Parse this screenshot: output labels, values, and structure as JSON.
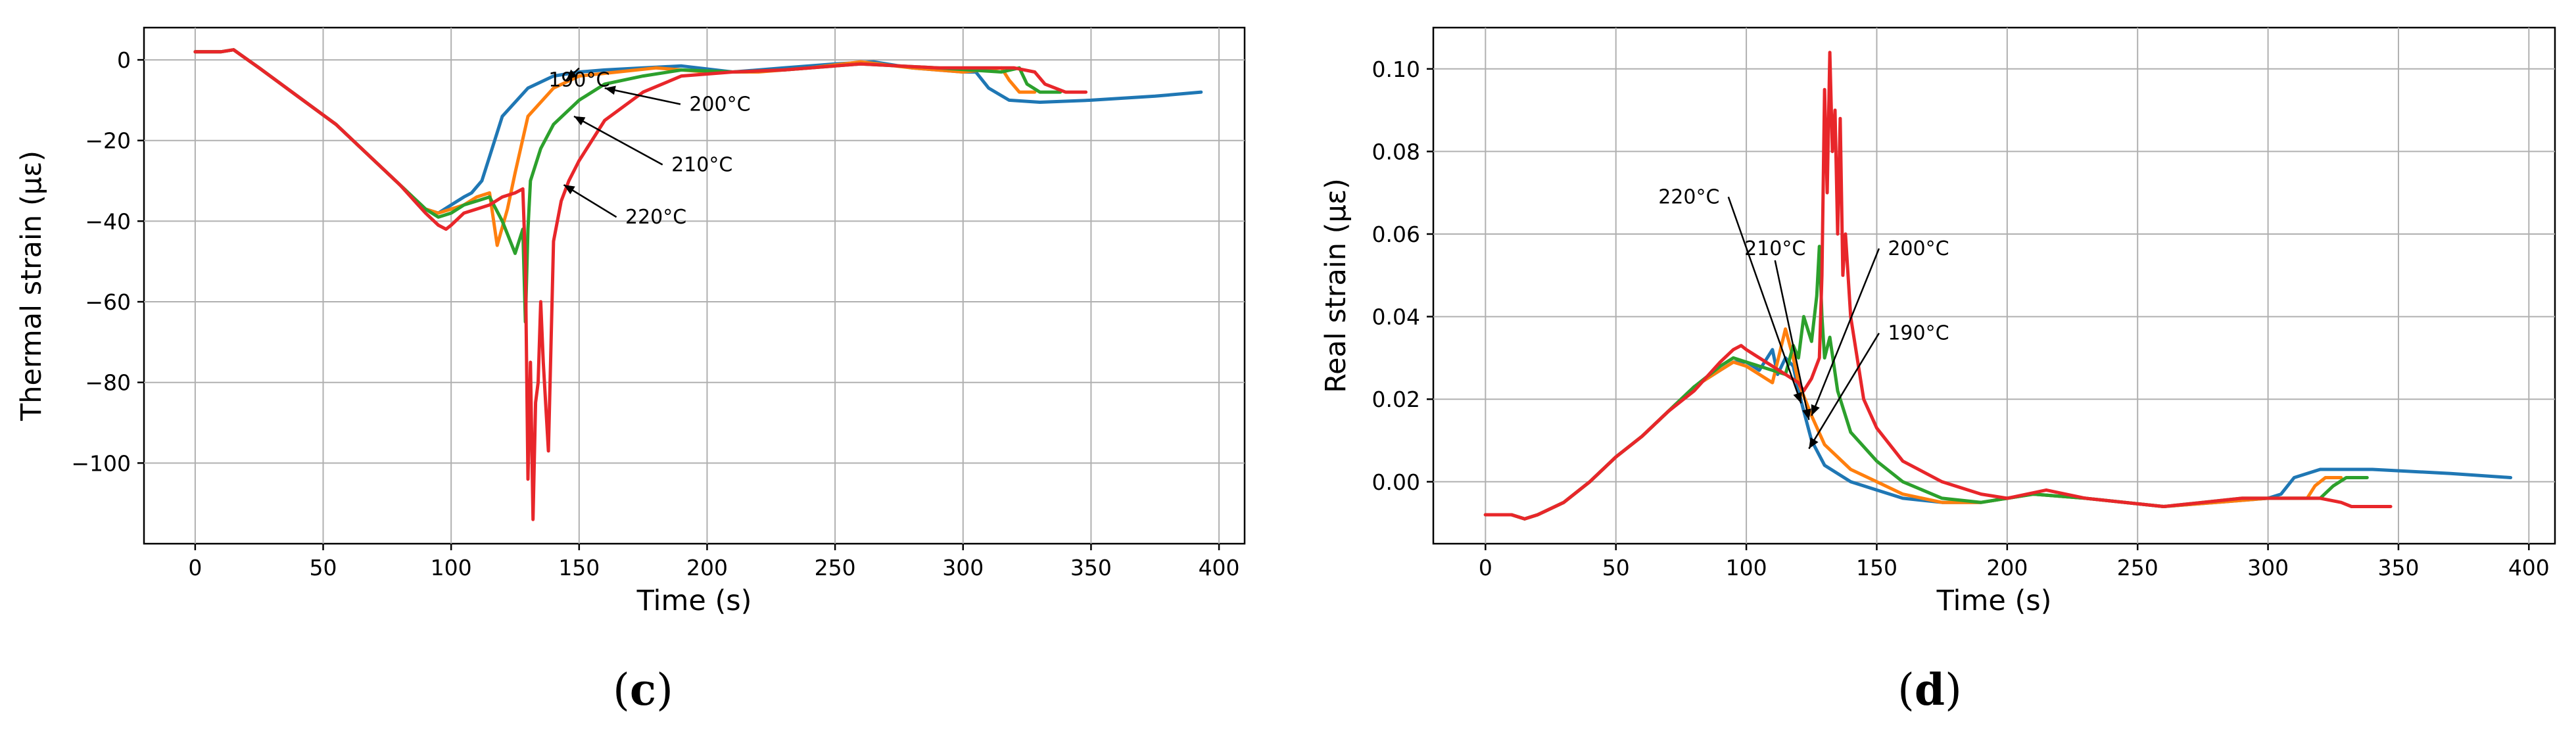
{
  "chart_data": [
    {
      "type": "line",
      "panel": "(c)",
      "caption_letter": "c",
      "xlabel": "Time (s)",
      "ylabel": "Thermal strain (µε)",
      "xlim": [
        -20,
        410
      ],
      "ylim": [
        -120,
        8
      ],
      "xticks": [
        0,
        50,
        100,
        150,
        200,
        250,
        300,
        350,
        400
      ],
      "yticks": [
        0,
        -20,
        -40,
        -60,
        -80,
        -100
      ],
      "ytick_labels": [
        "0",
        "−20",
        "−40",
        "−60",
        "−80",
        "−100"
      ],
      "grid": true,
      "annotations": [
        {
          "text": "190°C",
          "text_x": 150,
          "text_y": -5,
          "arrow_to": [
            145,
            -5
          ]
        },
        {
          "text": "200°C",
          "text_x": 205,
          "text_y": -11,
          "arrow_to": [
            160,
            -7
          ]
        },
        {
          "text": "210°C",
          "text_x": 198,
          "text_y": -26,
          "arrow_to": [
            148,
            -14
          ]
        },
        {
          "text": "220°C",
          "text_x": 180,
          "text_y": -39,
          "arrow_to": [
            144,
            -31
          ]
        }
      ],
      "series": [
        {
          "name": "190°C",
          "color": "#1f77b4",
          "x": [
            0,
            10,
            15,
            25,
            40,
            55,
            70,
            80,
            90,
            95,
            100,
            105,
            108,
            112,
            115,
            120,
            130,
            140,
            150,
            160,
            175,
            190,
            210,
            230,
            250,
            265,
            280,
            300,
            305,
            310,
            318,
            330,
            350,
            375,
            393
          ],
          "y": [
            2,
            2,
            2.5,
            -2,
            -9,
            -16,
            -25,
            -31,
            -37,
            -38,
            -36,
            -34,
            -33,
            -30,
            -24,
            -14,
            -7,
            -4,
            -3,
            -2.5,
            -2,
            -1.5,
            -3,
            -2,
            -1,
            -0.5,
            -2,
            -3,
            -3,
            -7,
            -10,
            -10.5,
            -10,
            -9,
            -8
          ]
        },
        {
          "name": "200°C",
          "color": "#ff7f0e",
          "x": [
            0,
            10,
            15,
            25,
            40,
            55,
            70,
            80,
            90,
            95,
            100,
            105,
            110,
            115,
            118,
            122,
            125,
            130,
            140,
            150,
            165,
            180,
            200,
            220,
            240,
            260,
            280,
            300,
            315,
            318,
            322,
            328
          ],
          "y": [
            2,
            2,
            2.5,
            -2,
            -9,
            -16,
            -25,
            -31,
            -37,
            -38,
            -37,
            -36,
            -34,
            -33,
            -46,
            -37,
            -28,
            -14,
            -7,
            -4,
            -3,
            -2,
            -3,
            -3,
            -2,
            -0.5,
            -2,
            -3,
            -2,
            -5,
            -8,
            -8
          ]
        },
        {
          "name": "210°C",
          "color": "#2ca02c",
          "x": [
            0,
            10,
            15,
            25,
            40,
            55,
            70,
            80,
            90,
            95,
            100,
            105,
            110,
            115,
            120,
            125,
            128,
            129,
            130,
            131,
            135,
            140,
            150,
            160,
            175,
            190,
            210,
            230,
            260,
            290,
            315,
            322,
            325,
            330,
            338
          ],
          "y": [
            2,
            2,
            2.5,
            -2,
            -9,
            -16,
            -25,
            -31,
            -37,
            -39,
            -38,
            -36,
            -35,
            -34,
            -40,
            -48,
            -42,
            -65,
            -42,
            -30,
            -22,
            -16,
            -10,
            -6,
            -4,
            -2.5,
            -3,
            -2.5,
            -1,
            -2,
            -3,
            -2,
            -6,
            -8,
            -8
          ]
        },
        {
          "name": "220°C",
          "color": "#e8262a",
          "x": [
            0,
            10,
            15,
            25,
            40,
            55,
            70,
            80,
            90,
            95,
            98,
            100,
            105,
            110,
            115,
            120,
            125,
            128,
            129,
            130,
            131,
            132,
            133,
            134,
            135,
            136,
            138,
            140,
            143,
            146,
            150,
            160,
            175,
            190,
            210,
            230,
            260,
            290,
            320,
            328,
            332,
            340,
            348
          ],
          "y": [
            2,
            2,
            2.5,
            -2,
            -9,
            -16,
            -25,
            -31,
            -38,
            -41,
            -42,
            -41,
            -38,
            -37,
            -36,
            -34,
            -33,
            -32,
            -50,
            -104,
            -75,
            -114,
            -85,
            -80,
            -60,
            -75,
            -97,
            -45,
            -35,
            -30,
            -25,
            -15,
            -8,
            -4,
            -3,
            -2.5,
            -1,
            -2,
            -2,
            -3,
            -6,
            -8,
            -8
          ]
        }
      ]
    },
    {
      "type": "line",
      "panel": "(d)",
      "caption_letter": "d",
      "xlabel": "Time (s)",
      "ylabel": "Real strain (µε)",
      "xlim": [
        -20,
        410
      ],
      "ylim": [
        -0.015,
        0.11
      ],
      "xticks": [
        0,
        50,
        100,
        150,
        200,
        250,
        300,
        350,
        400
      ],
      "yticks": [
        0.0,
        0.02,
        0.04,
        0.06,
        0.08,
        0.1
      ],
      "ytick_labels": [
        "0.00",
        "0.02",
        "0.04",
        "0.06",
        "0.08",
        "0.10"
      ],
      "grid": true,
      "annotations": [
        {
          "text": "220°C",
          "text_x": 78,
          "text_y": 0.069,
          "arrow_to": [
            121,
            0.019
          ]
        },
        {
          "text": "210°C",
          "text_x": 111,
          "text_y": 0.0565,
          "arrow_to": [
            124,
            0.015
          ]
        },
        {
          "text": "200°C",
          "text_x": 166,
          "text_y": 0.0565,
          "arrow_to": [
            125,
            0.016
          ]
        },
        {
          "text": "190°C",
          "text_x": 166,
          "text_y": 0.036,
          "arrow_to": [
            124,
            0.008
          ]
        }
      ],
      "series": [
        {
          "name": "190°C",
          "color": "#1f77b4",
          "x": [
            0,
            10,
            15,
            20,
            30,
            40,
            50,
            60,
            70,
            80,
            90,
            95,
            100,
            105,
            108,
            110,
            112,
            115,
            118,
            120,
            125,
            130,
            140,
            150,
            160,
            175,
            190,
            210,
            230,
            260,
            280,
            300,
            305,
            310,
            320,
            340,
            370,
            393
          ],
          "y": [
            -0.008,
            -0.008,
            -0.009,
            -0.008,
            -0.005,
            0.0,
            0.006,
            0.011,
            0.017,
            0.023,
            0.027,
            0.029,
            0.029,
            0.027,
            0.03,
            0.032,
            0.026,
            0.03,
            0.028,
            0.022,
            0.01,
            0.004,
            0.0,
            -0.002,
            -0.004,
            -0.005,
            -0.005,
            -0.003,
            -0.004,
            -0.006,
            -0.005,
            -0.004,
            -0.003,
            0.001,
            0.003,
            0.003,
            0.002,
            0.001
          ]
        },
        {
          "name": "200°C",
          "color": "#ff7f0e",
          "x": [
            0,
            10,
            15,
            20,
            30,
            40,
            50,
            60,
            70,
            80,
            90,
            95,
            100,
            105,
            110,
            115,
            118,
            120,
            125,
            130,
            140,
            150,
            160,
            175,
            190,
            210,
            230,
            260,
            280,
            300,
            315,
            318,
            322,
            328
          ],
          "y": [
            -0.008,
            -0.008,
            -0.009,
            -0.008,
            -0.005,
            0.0,
            0.006,
            0.011,
            0.017,
            0.023,
            0.027,
            0.029,
            0.028,
            0.026,
            0.024,
            0.037,
            0.03,
            0.024,
            0.016,
            0.009,
            0.003,
            0.0,
            -0.003,
            -0.005,
            -0.005,
            -0.003,
            -0.004,
            -0.006,
            -0.005,
            -0.004,
            -0.004,
            -0.001,
            0.001,
            0.001
          ]
        },
        {
          "name": "210°C",
          "color": "#2ca02c",
          "x": [
            0,
            10,
            15,
            20,
            30,
            40,
            50,
            60,
            70,
            80,
            90,
            95,
            100,
            105,
            110,
            115,
            118,
            120,
            122,
            125,
            127,
            128,
            129,
            130,
            132,
            135,
            140,
            150,
            160,
            175,
            190,
            210,
            230,
            260,
            290,
            320,
            325,
            330,
            338
          ],
          "y": [
            -0.008,
            -0.008,
            -0.009,
            -0.008,
            -0.005,
            0.0,
            0.006,
            0.011,
            0.017,
            0.023,
            0.028,
            0.03,
            0.029,
            0.028,
            0.027,
            0.026,
            0.033,
            0.03,
            0.04,
            0.034,
            0.045,
            0.057,
            0.04,
            0.03,
            0.035,
            0.022,
            0.012,
            0.005,
            0.0,
            -0.004,
            -0.005,
            -0.003,
            -0.004,
            -0.006,
            -0.004,
            -0.004,
            -0.001,
            0.001,
            0.001
          ]
        },
        {
          "name": "220°C",
          "color": "#e8262a",
          "x": [
            0,
            10,
            15,
            20,
            30,
            40,
            50,
            60,
            70,
            80,
            90,
            95,
            98,
            100,
            105,
            110,
            115,
            120,
            122,
            125,
            128,
            129,
            130,
            131,
            132,
            133,
            134,
            135,
            136,
            137,
            138,
            140,
            145,
            150,
            160,
            175,
            190,
            200,
            215,
            230,
            260,
            290,
            320,
            328,
            332,
            340,
            347
          ],
          "y": [
            -0.008,
            -0.008,
            -0.009,
            -0.008,
            -0.005,
            0.0,
            0.006,
            0.011,
            0.017,
            0.022,
            0.029,
            0.032,
            0.033,
            0.032,
            0.03,
            0.028,
            0.026,
            0.024,
            0.022,
            0.025,
            0.03,
            0.05,
            0.095,
            0.07,
            0.104,
            0.08,
            0.09,
            0.06,
            0.088,
            0.05,
            0.06,
            0.04,
            0.02,
            0.013,
            0.005,
            0.0,
            -0.003,
            -0.004,
            -0.002,
            -0.004,
            -0.006,
            -0.004,
            -0.004,
            -0.005,
            -0.006,
            -0.006,
            -0.006
          ]
        }
      ]
    }
  ]
}
